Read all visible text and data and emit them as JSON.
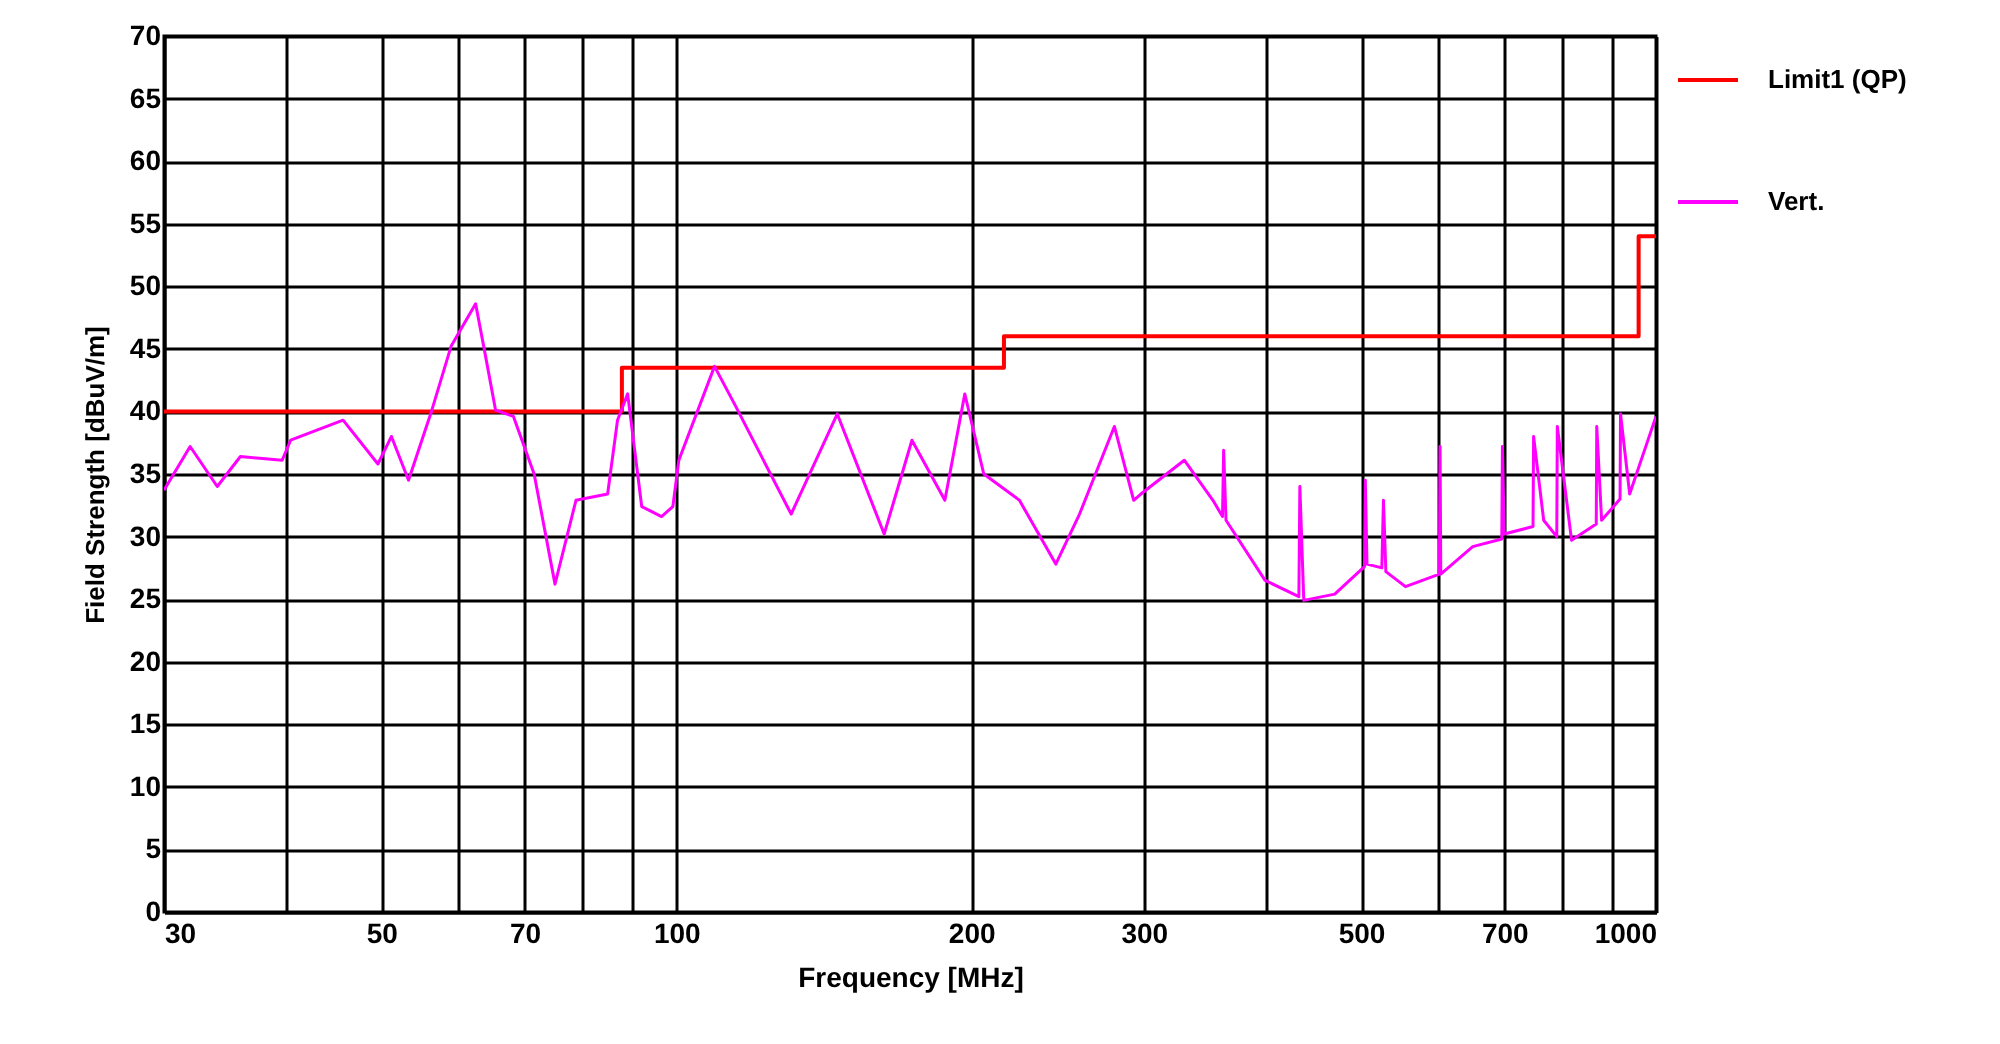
{
  "chart_data": {
    "type": "line",
    "xlabel": "Frequency [MHz]",
    "ylabel": "Field Strength [dBuV/m]",
    "log": "x",
    "grid": true,
    "legend": "top right",
    "line_style": "solid",
    "xlim": [
      30,
      1000
    ],
    "ylim": [
      0,
      70
    ],
    "xticks": [
      30,
      {
        "value": 40,
        "label": null
      },
      50,
      {
        "value": 60,
        "label": null
      },
      70,
      {
        "value": 80,
        "label": null
      },
      {
        "value": 90,
        "label": null
      },
      100,
      200,
      300,
      {
        "value": 400,
        "label": null
      },
      500,
      {
        "value": 600,
        "label": null
      },
      700,
      {
        "value": 800,
        "label": null
      },
      {
        "value": 900,
        "label": null
      },
      1000
    ],
    "yticks": [
      0,
      5,
      10,
      15,
      20,
      25,
      30,
      35,
      40,
      45,
      50,
      55,
      60,
      65,
      70
    ],
    "series": [
      {
        "name": "Limit1 (QP)",
        "type": "step",
        "color": "#ff0000",
        "x": [
          30,
          88,
          216,
          960,
          1000
        ],
        "values": [
          40,
          43.5,
          46,
          54,
          54
        ]
      },
      {
        "name": "Vert.",
        "type": "line",
        "color": "#ff00ff",
        "x": [
          30,
          31.9,
          34,
          35.9,
          39.6,
          40.4,
          45.7,
          49.6,
          51.2,
          53.3,
          56.3,
          58.9,
          62.4,
          63.6,
          65.4,
          68.2,
          71.6,
          75.2,
          79,
          85.1,
          87.1,
          89.2,
          92.2,
          96.6,
          99.2,
          100.6,
          109.4,
          115,
          131,
          146,
          163,
          174,
          188,
          197,
          206,
          224,
          244,
          258,
          280,
          293,
          298,
          330,
          353,
          361,
          362,
          364,
          399,
          432,
          433,
          437,
          470,
          504,
          505,
          507,
          525,
          527,
          530,
          555,
          601,
          602,
          603,
          650,
          696,
          697,
          700,
          749,
          750,
          768,
          792,
          793,
          820,
          869,
          870,
          880,
          919,
          920,
          940,
          1000
        ],
        "values": [
          33.7,
          37.2,
          34,
          36.4,
          36.1,
          37.7,
          39.3,
          35.8,
          38,
          34.5,
          40.1,
          45.2,
          48.6,
          45.2,
          40.1,
          39.6,
          35,
          26.2,
          32.9,
          33.4,
          39.3,
          41.4,
          32.4,
          31.6,
          32.4,
          36.1,
          43.6,
          40.4,
          31.8,
          39.8,
          30.2,
          37.7,
          32.9,
          41.4,
          35,
          32.9,
          27.8,
          31.8,
          38.8,
          32.9,
          33.4,
          36.1,
          32.9,
          31.6,
          36.9,
          31.3,
          26.5,
          25.2,
          34,
          24.9,
          25.4,
          27.6,
          34.5,
          27.8,
          27.5,
          32.9,
          27.2,
          26,
          27,
          37.2,
          27,
          29.2,
          29.8,
          37.2,
          30.2,
          30.8,
          38,
          31.3,
          30,
          38.8,
          29.7,
          31,
          38.8,
          31.3,
          33,
          39.8,
          33.4,
          39.6
        ]
      }
    ]
  }
}
